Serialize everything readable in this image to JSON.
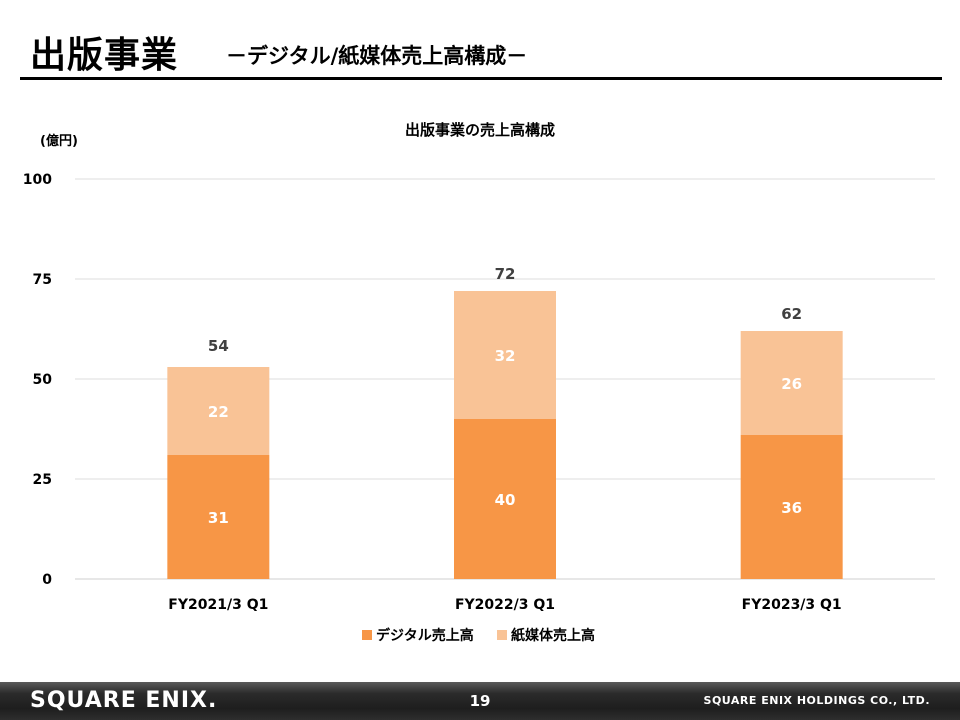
{
  "slide": {
    "title": "出版事業",
    "subtitle": "－デジタル/紙媒体売上高構成－",
    "page_number": "19"
  },
  "footer": {
    "logo_text": "SQUARE ENIX.",
    "company": "SQUARE ENIX HOLDINGS CO., LTD."
  },
  "chart_data": {
    "type": "bar",
    "stacked": true,
    "title": "出版事業の売上高構成",
    "ylabel": "(億円)",
    "xlabel": "",
    "categories": [
      "FY2021/3 Q1",
      "FY2022/3 Q1",
      "FY2023/3 Q1"
    ],
    "ylim": [
      0,
      100
    ],
    "yticks": [
      0,
      25,
      50,
      75,
      100
    ],
    "grid": true,
    "legend_position": "bottom",
    "series": [
      {
        "name": "デジタル売上高",
        "values": [
          31,
          40,
          36
        ],
        "color": "#F79646"
      },
      {
        "name": "紙媒体売上高",
        "values": [
          22,
          32,
          26
        ],
        "color": "#F9C396"
      }
    ],
    "totals": [
      54,
      72,
      62
    ]
  }
}
